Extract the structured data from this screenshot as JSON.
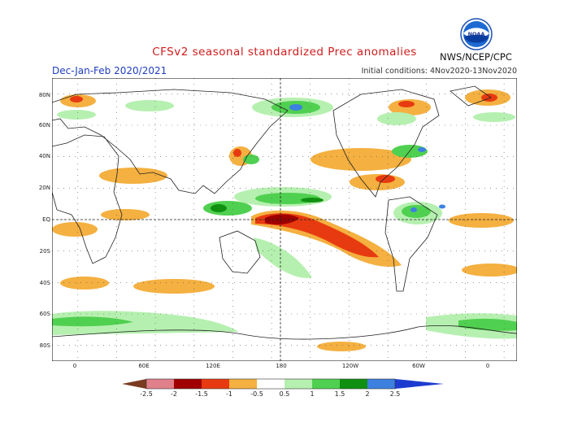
{
  "title": "CFSv2 seasonal standardized Prec anomalies",
  "season": "Dec-Jan-Feb 2020/2021",
  "initial_conditions": "Initial conditions: 4Nov2020-13Nov2020",
  "agency": "NWS/NCEP/CPC",
  "logo": {
    "icon": "noaa-logo-icon",
    "text": "NOAA"
  },
  "map": {
    "projection": "equirectangular",
    "lon_range": [
      -20,
      340
    ],
    "lat_range": [
      -90,
      90
    ],
    "lat_ticks": [
      "80N",
      "60N",
      "40N",
      "20N",
      "EQ",
      "20S",
      "40S",
      "60S",
      "80S"
    ],
    "lon_ticks": [
      "0",
      "60E",
      "120E",
      "180",
      "120W",
      "60W",
      "0"
    ],
    "reference_lines": [
      "equator",
      "dateline"
    ]
  },
  "colorbar": {
    "labels": [
      "-2.5",
      "-2",
      "-1.5",
      "-1",
      "-0.5",
      "0.5",
      "1",
      "1.5",
      "2",
      "2.5"
    ],
    "colors": {
      "lt_m25": "#7a3b20",
      "m25_m2": "#e0808a",
      "m2_m15": "#a00000",
      "m15_m1": "#e83a10",
      "m1_m05": "#f4b040",
      "m05_05": "#ffffff",
      "p05_1": "#b6f0b0",
      "p1_15": "#50d050",
      "p15_2": "#109010",
      "p2_25": "#3c80e0",
      "gt_25": "#1c3cd0"
    }
  }
}
